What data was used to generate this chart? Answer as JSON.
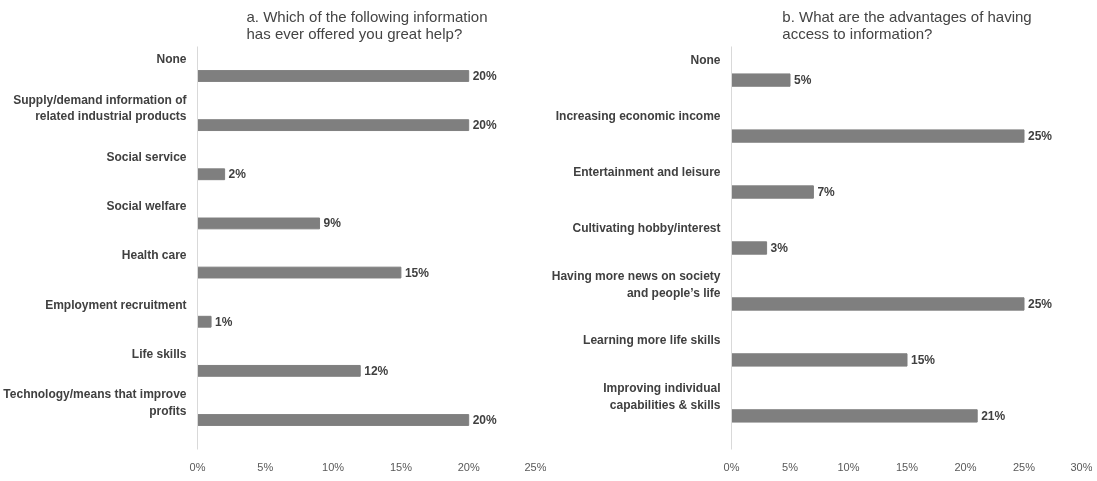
{
  "chart_data": [
    {
      "type": "bar",
      "orientation": "horizontal",
      "title": "a. Which of the following information has ever offered you great help?",
      "categories": [
        "None",
        "Supply/demand information of related industrial products",
        "Social service",
        "Social welfare",
        "Health care",
        "Employment recruitment",
        "Life skills",
        "Technology/means that improve profits"
      ],
      "values": [
        20,
        20,
        2,
        9,
        15,
        1,
        12,
        20
      ],
      "value_labels": [
        "20%",
        "20%",
        "2%",
        "9%",
        "15%",
        "1%",
        "12%",
        "20%"
      ],
      "color": "#7f7f7f",
      "xlim": [
        0,
        25
      ],
      "xticks": [
        {
          "value": 0,
          "label": "0%"
        },
        {
          "value": 5,
          "label": "5%"
        },
        {
          "value": 10,
          "label": "10%"
        },
        {
          "value": 15,
          "label": "15%"
        },
        {
          "value": 20,
          "label": "20%"
        },
        {
          "value": 25,
          "label": "25%"
        }
      ],
      "grid": false
    },
    {
      "type": "bar",
      "orientation": "horizontal",
      "title": "b. What are the advantages of having access to information?",
      "categories": [
        "None",
        "Increasing economic income",
        "Entertainment and leisure",
        "Cultivating hobby/interest",
        "Having more news on society and people’s life",
        "Learning more life skills",
        "Improving individual capabilities & skills"
      ],
      "values": [
        5,
        25,
        7,
        3,
        25,
        15,
        21
      ],
      "value_labels": [
        "5%",
        "25%",
        "7%",
        "3%",
        "25%",
        "15%",
        "21%"
      ],
      "color": "#7f7f7f",
      "xlim": [
        0,
        30
      ],
      "xticks": [
        {
          "value": 0,
          "label": "0%"
        },
        {
          "value": 5,
          "label": "5%"
        },
        {
          "value": 10,
          "label": "10%"
        },
        {
          "value": 15,
          "label": "15%"
        },
        {
          "value": 20,
          "label": "20%"
        },
        {
          "value": 25,
          "label": "25%"
        },
        {
          "value": 30,
          "label": "30%"
        }
      ],
      "grid": false
    }
  ]
}
